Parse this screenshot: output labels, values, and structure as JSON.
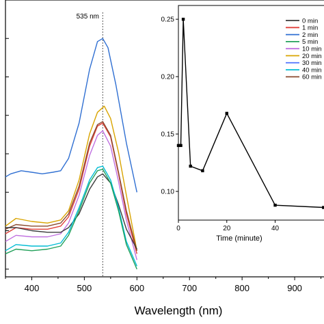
{
  "chart_data": [
    {
      "type": "line",
      "title": "",
      "xlabel": "Wavelength (nm)",
      "ylabel": "",
      "xlim": [
        350,
        1000
      ],
      "xticks": [
        400,
        500,
        600,
        700,
        800,
        900
      ],
      "annotation": {
        "text": "535 nm",
        "x": 535
      },
      "colors": {
        "0 min": "#3a3a3a",
        "1 min": "#e0403a",
        "2 min": "#2f6fd2",
        "5 min": "#22a05a",
        "10 min": "#c070e0",
        "20 min": "#d9a400",
        "30 min": "#5a7cff",
        "40 min": "#00bcd4",
        "60 min": "#8a4a2f"
      },
      "series": [
        {
          "name": "2 min",
          "x": [
            350,
            360,
            380,
            400,
            420,
            440,
            455,
            470,
            490,
            510,
            525,
            535,
            545,
            560,
            580,
            600
          ],
          "y": [
            0.6,
            0.62,
            0.64,
            0.63,
            0.62,
            0.63,
            0.64,
            0.72,
            0.95,
            1.3,
            1.48,
            1.5,
            1.44,
            1.2,
            0.82,
            0.5
          ]
        },
        {
          "name": "20 min",
          "x": [
            350,
            370,
            400,
            430,
            455,
            470,
            490,
            510,
            525,
            538,
            550,
            565,
            580,
            600
          ],
          "y": [
            0.28,
            0.33,
            0.31,
            0.3,
            0.32,
            0.38,
            0.58,
            0.88,
            1.02,
            1.06,
            0.98,
            0.76,
            0.48,
            0.12
          ]
        },
        {
          "name": "1 min",
          "x": [
            350,
            370,
            400,
            430,
            455,
            470,
            490,
            510,
            525,
            535,
            550,
            565,
            580,
            600
          ],
          "y": [
            0.23,
            0.27,
            0.26,
            0.26,
            0.28,
            0.34,
            0.52,
            0.8,
            0.93,
            0.95,
            0.86,
            0.62,
            0.36,
            0.1
          ]
        },
        {
          "name": "60 min",
          "x": [
            350,
            370,
            400,
            430,
            455,
            470,
            490,
            510,
            525,
            535,
            550,
            565,
            580,
            600
          ],
          "y": [
            0.26,
            0.29,
            0.28,
            0.28,
            0.3,
            0.36,
            0.54,
            0.82,
            0.94,
            0.96,
            0.87,
            0.63,
            0.38,
            0.12
          ]
        },
        {
          "name": "10 min",
          "x": [
            350,
            370,
            400,
            430,
            455,
            470,
            490,
            510,
            525,
            535,
            550,
            565,
            580,
            600
          ],
          "y": [
            0.18,
            0.22,
            0.21,
            0.21,
            0.23,
            0.3,
            0.48,
            0.74,
            0.87,
            0.9,
            0.8,
            0.57,
            0.32,
            0.06
          ]
        },
        {
          "name": "0 min",
          "x": [
            350,
            370,
            400,
            430,
            455,
            470,
            490,
            510,
            525,
            535,
            550,
            565,
            580,
            600
          ],
          "y": [
            0.27,
            0.27,
            0.25,
            0.24,
            0.24,
            0.27,
            0.36,
            0.52,
            0.6,
            0.62,
            0.56,
            0.42,
            0.26,
            0.13
          ]
        },
        {
          "name": "40 min",
          "x": [
            350,
            370,
            400,
            430,
            455,
            470,
            490,
            510,
            525,
            535,
            550,
            565,
            580,
            600
          ],
          "y": [
            0.12,
            0.16,
            0.15,
            0.15,
            0.17,
            0.24,
            0.4,
            0.58,
            0.66,
            0.67,
            0.58,
            0.4,
            0.18,
            0.02
          ]
        },
        {
          "name": "5 min",
          "x": [
            350,
            370,
            400,
            430,
            455,
            470,
            490,
            510,
            525,
            535,
            550,
            565,
            580,
            600
          ],
          "y": [
            0.1,
            0.13,
            0.12,
            0.13,
            0.15,
            0.22,
            0.38,
            0.56,
            0.64,
            0.65,
            0.56,
            0.38,
            0.16,
            0.0
          ]
        }
      ]
    },
    {
      "type": "line",
      "title": "",
      "xlabel": "Time (minute)",
      "ylabel": "",
      "xlim": [
        0,
        65
      ],
      "ylim": [
        0.075,
        0.262
      ],
      "xticks": [
        0,
        20,
        40
      ],
      "yticks": [
        0.1,
        0.15,
        0.2,
        0.25
      ],
      "ytick_labels": [
        "0.10",
        "0.15",
        "0.20",
        "0.25"
      ],
      "legend": {
        "placement": "right",
        "entries": [
          "0 min",
          "1 min",
          "2 min",
          "5 min",
          "10 min",
          "20 min",
          "30 min",
          "40 min",
          "60 min"
        ]
      },
      "series": [
        {
          "x": [
            0,
            1,
            2,
            5,
            10,
            20,
            40,
            60
          ],
          "y": [
            0.14,
            0.14,
            0.25,
            0.122,
            0.118,
            0.168,
            0.088,
            0.086
          ]
        }
      ]
    }
  ]
}
